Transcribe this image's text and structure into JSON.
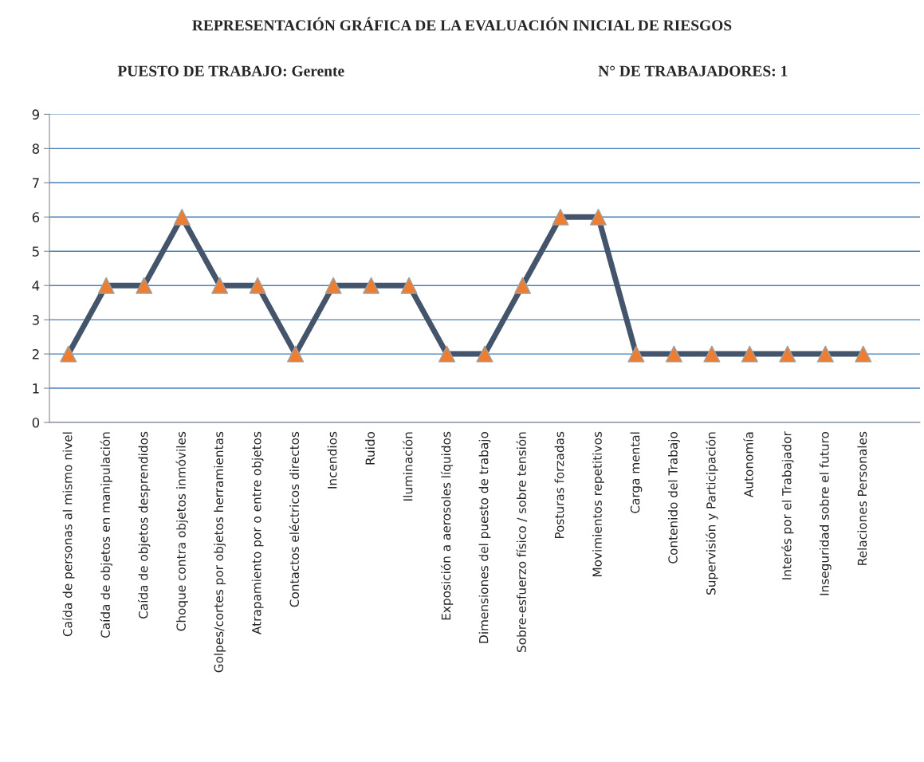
{
  "chart_data": {
    "type": "line",
    "title": "REPRESENTACIÓN GRÁFICA DE LA EVALUACIÓN INICIAL DE RIESGOS",
    "subtitle": "PUESTO DE TRABAJO: Gerente",
    "annotations": [
      "N° DE TRABAJADORES: 1"
    ],
    "categories": [
      "Caída de personas al mismo nivel",
      "Caída de objetos en manipulación",
      "Caída de objetos desprendidos",
      "Choque contra objetos inmóviles",
      "Golpes/cortes por objetos herramientas",
      "Atrapamiento por o entre objetos",
      "Contactos eléctricos directos",
      "Incendios",
      "Ruido",
      "Iluminación",
      "Exposición a aerosoles líquidos",
      "Dimensiones del puesto de trabajo",
      "Sobre-esfuerzo físico / sobre tensión",
      "Posturas forzadas",
      "Movimientos repetitivos",
      "Carga mental",
      "Contenido del Trabajo",
      "Supervisión y Participación",
      "Autonomía",
      "Interés por el Trabajador",
      "Inseguridad sobre el futuro",
      "Relaciones Personales",
      null
    ],
    "series": [
      {
        "color": "#44546a",
        "colors": [
          "#ed7d31",
          "#ed7d31",
          "#ed7d31",
          "#ed7d31",
          "#ed7d31",
          "#ed7d31",
          "#ed7d31",
          "#ed7d31",
          "#ed7d31",
          "#ed7d31",
          "#ed7d31",
          "#ed7d31",
          "#ed7d31",
          "#ed7d31",
          "#ed7d31",
          "#ed7d31",
          "#ed7d31",
          "#ed7d31",
          "#ed7d31",
          "#ed7d31",
          "#ed7d31",
          "#ed7d31",
          null
        ],
        "values": [
          2,
          4,
          4,
          6,
          4,
          4,
          2,
          4,
          4,
          4,
          2,
          2,
          4,
          6,
          6,
          2,
          2,
          2,
          2,
          2,
          2,
          2,
          null
        ]
      }
    ],
    "ylim": [
      0,
      9
    ],
    "yticks": [
      0,
      1,
      2,
      3,
      4,
      5,
      6,
      7,
      8,
      9
    ],
    "grid": "y",
    "marker": "triangle",
    "line_style": "solid"
  }
}
